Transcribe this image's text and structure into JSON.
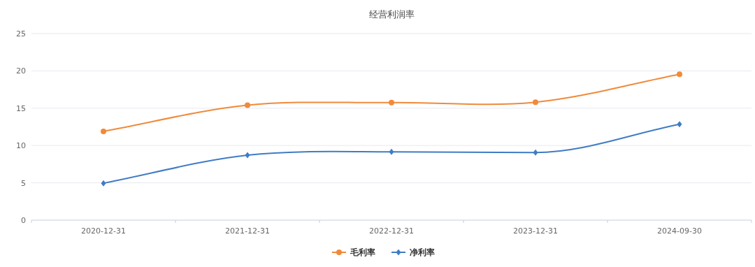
{
  "chart_data": {
    "type": "line",
    "title": "经营利润率",
    "categories": [
      "2020-12-31",
      "2021-12-31",
      "2022-12-31",
      "2023-12-31",
      "2024-09-30"
    ],
    "series": [
      {
        "name": "毛利率",
        "color": "#f08a3a",
        "marker": "circle",
        "values": [
          11.9,
          15.4,
          15.75,
          15.8,
          19.55
        ]
      },
      {
        "name": "净利率",
        "color": "#3f7cc4",
        "marker": "diamond",
        "values": [
          4.95,
          8.7,
          9.15,
          9.05,
          12.85
        ]
      }
    ],
    "ylim": [
      0,
      25
    ],
    "yticks": [
      0,
      5,
      10,
      15,
      20,
      25
    ],
    "grid": "y",
    "legend": "bottom"
  }
}
